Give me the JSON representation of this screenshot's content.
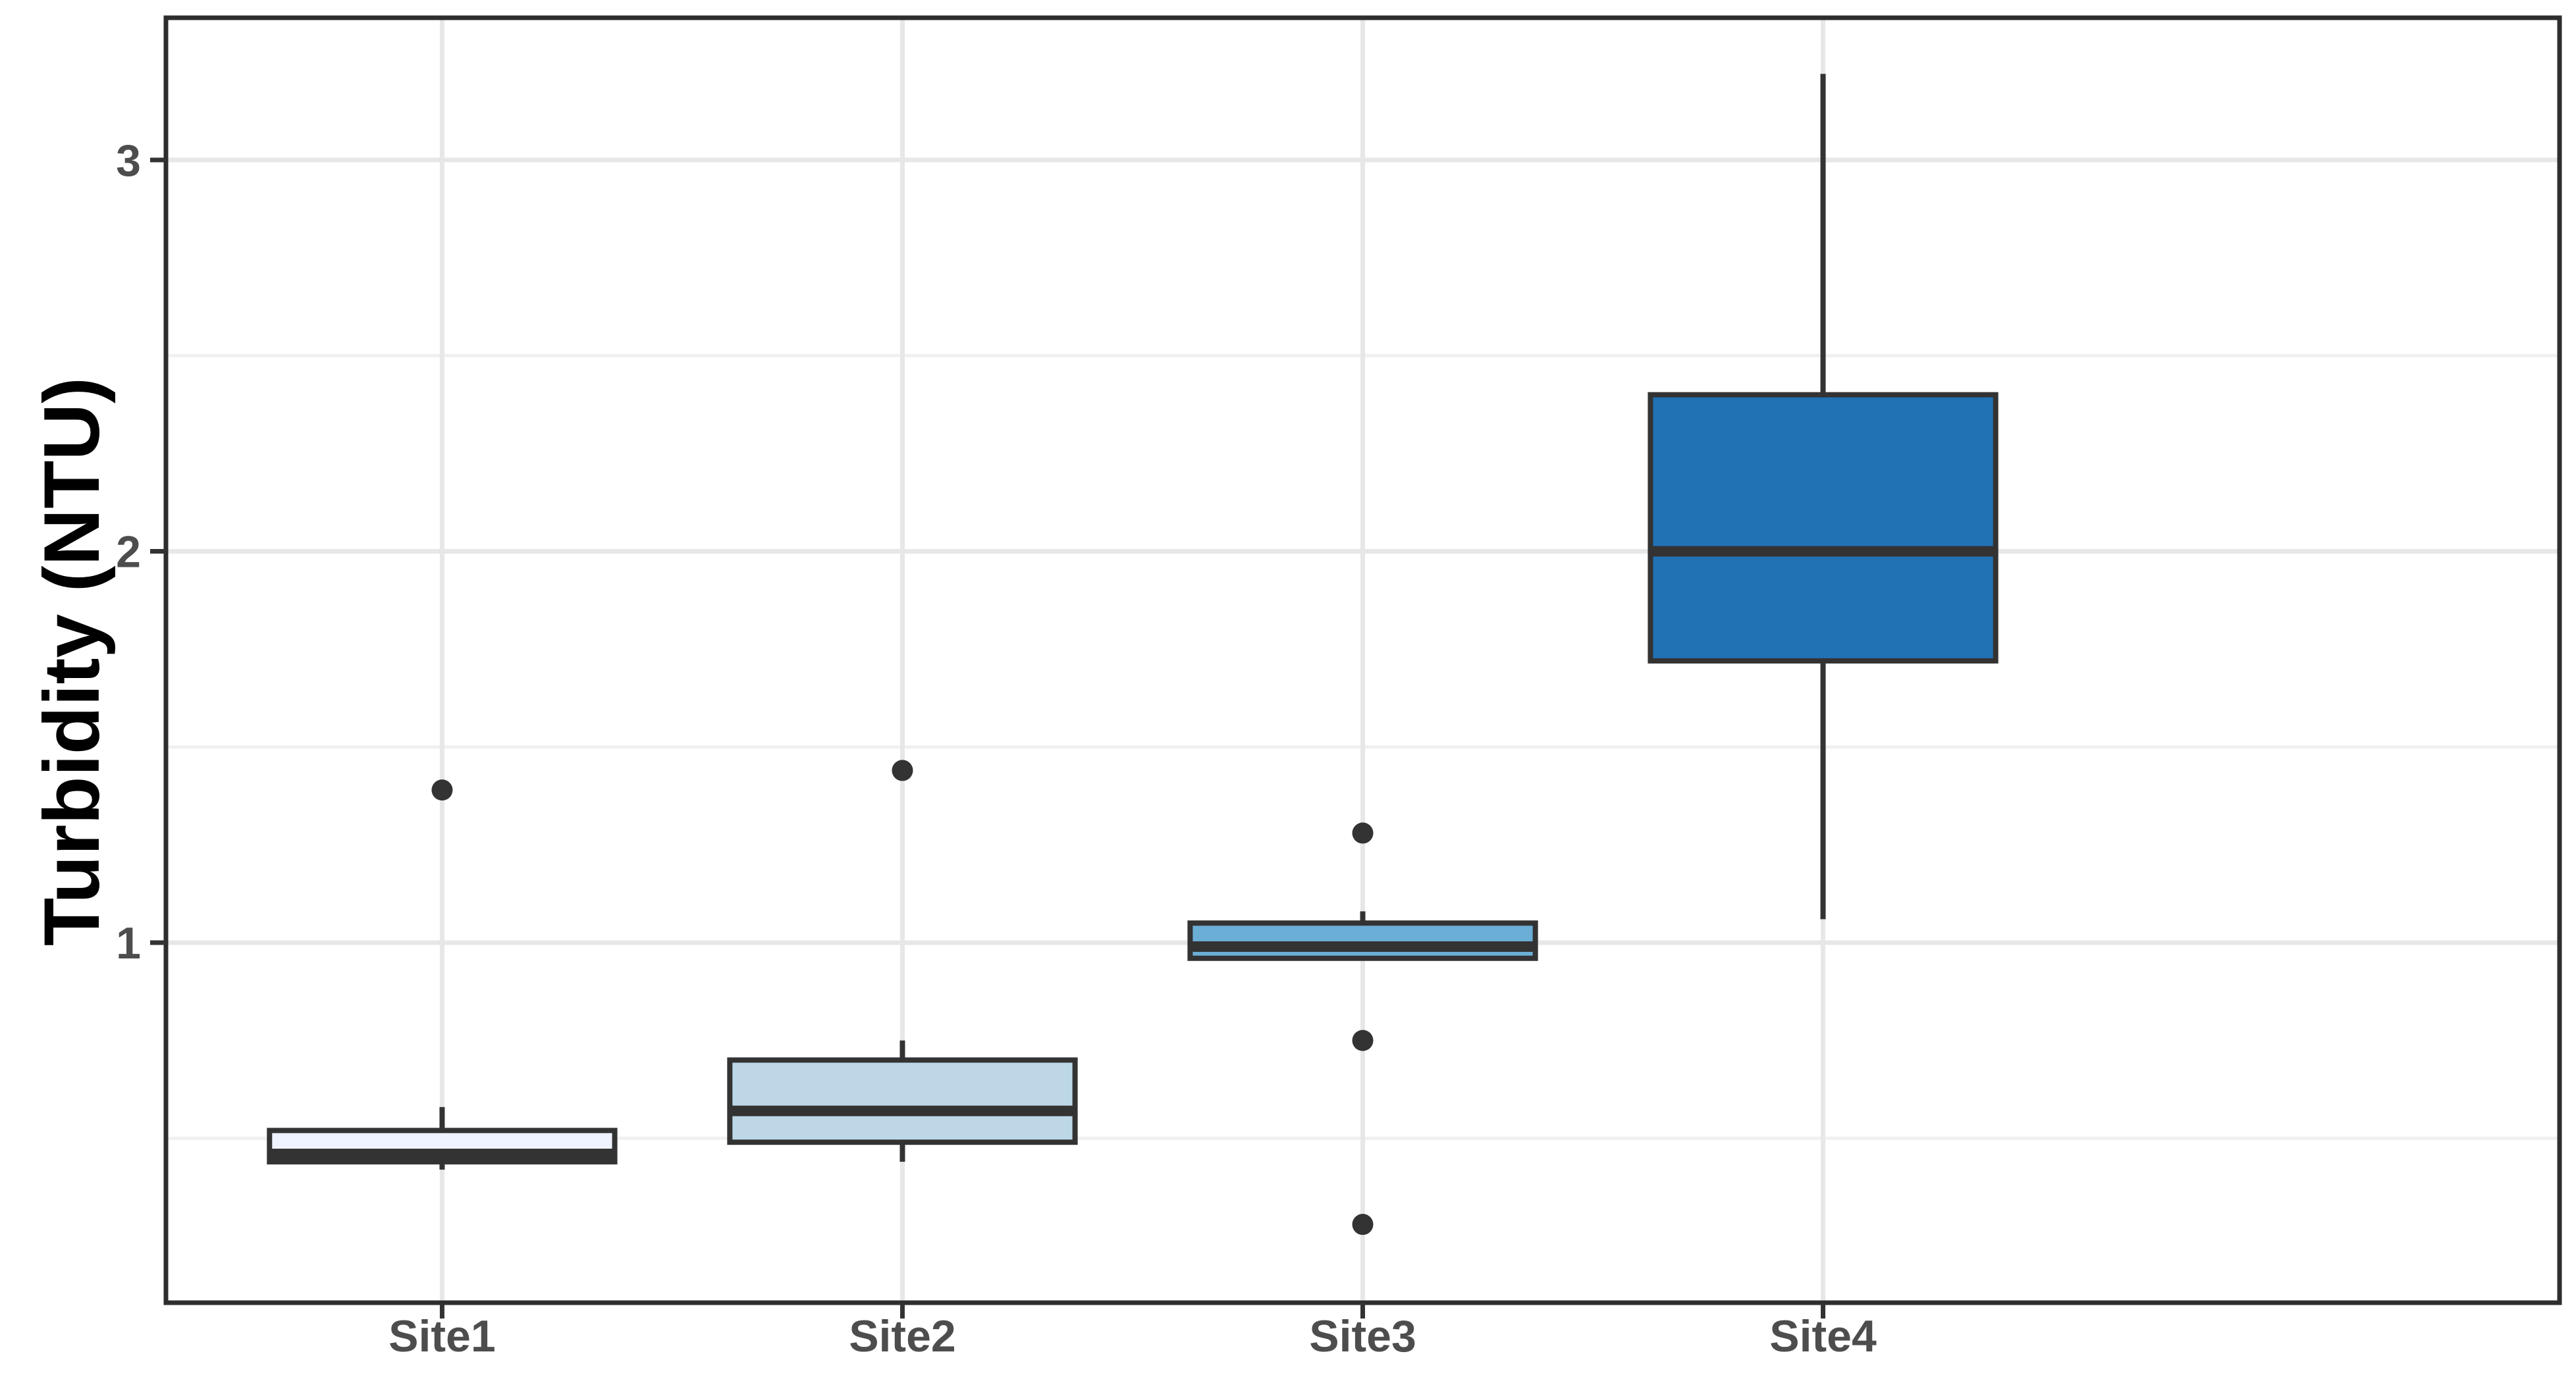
{
  "page": {
    "background": "#ffffff"
  },
  "chart_data": {
    "type": "boxplot",
    "title": "",
    "xlabel": "",
    "ylabel": "Turbidity (NTU)",
    "categories": [
      "Site1",
      "Site2",
      "Site3",
      "Site4"
    ],
    "y_axis": {
      "ticks": [
        3,
        2,
        1
      ],
      "tick_labels": [
        "3",
        "2",
        "1"
      ],
      "minor_gridlines": [
        0.5,
        1.5,
        2.5
      ],
      "range": [
        0.08,
        3.36
      ]
    },
    "grid": {
      "horizontal_major": true,
      "horizontal_minor": true,
      "vertical_major_per_category": true
    },
    "series": [
      {
        "name": "Site1",
        "fill": "#EFF3FF",
        "whisker_low": 0.42,
        "q1": 0.44,
        "median": 0.46,
        "q3": 0.52,
        "whisker_high": 0.58,
        "outliers": [
          1.39
        ]
      },
      {
        "name": "Site2",
        "fill": "#BDD7E7",
        "whisker_low": 0.44,
        "q1": 0.49,
        "median": 0.57,
        "q3": 0.7,
        "whisker_high": 0.75,
        "outliers": [
          1.44
        ]
      },
      {
        "name": "Site3",
        "fill": "#6BAED6",
        "whisker_low": 0.96,
        "q1": 0.96,
        "median": 0.99,
        "q3": 1.05,
        "whisker_high": 1.08,
        "outliers": [
          1.28,
          0.75,
          0.28
        ]
      },
      {
        "name": "Site4",
        "fill": "#2171B5",
        "whisker_low": 1.06,
        "q1": 1.72,
        "median": 2.0,
        "q3": 2.4,
        "whisker_high": 3.22,
        "outliers": []
      }
    ],
    "style": {
      "panel_background": "#ffffff",
      "panel_border": "#2e2e2e",
      "grid_major": "#e7e7e7",
      "grid_minor": "#f0f0f0",
      "box_border": "#333333",
      "median_color": "#333333",
      "whisker_color": "#333333",
      "outlier_color": "#333333",
      "tick_mark_color": "#333333",
      "axis_text_color": "#4d4d4d",
      "axis_title_color": "#000000"
    }
  }
}
